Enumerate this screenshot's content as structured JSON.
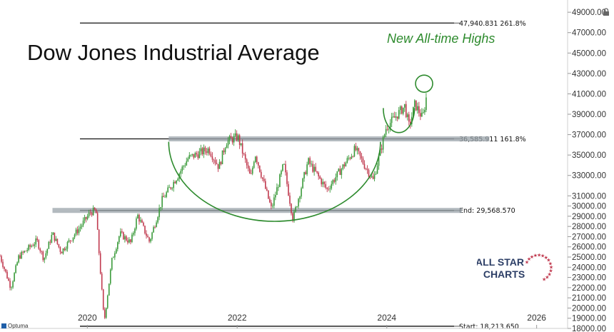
{
  "page": {
    "title": "Dow Jones Industrial Average",
    "annotation": "New All-time Highs",
    "logo": {
      "line1": "ALL STAR",
      "line2": "CHARTS"
    },
    "brand": "Optuma"
  },
  "chart_data": {
    "type": "candlestick",
    "title": "Dow Jones Industrial Average",
    "x_range": [
      "2018-11-01",
      "2026-06-01"
    ],
    "y_range": [
      18000,
      49500
    ],
    "x_ticks": [
      {
        "label": "2020",
        "date": "2020-01-01"
      },
      {
        "label": "2022",
        "date": "2022-01-01"
      },
      {
        "label": "2024",
        "date": "2024-01-01"
      },
      {
        "label": "2026",
        "date": "2026-01-01"
      }
    ],
    "y_ticks": [
      "18000.00",
      "19000.00",
      "20000.00",
      "21000.00",
      "22000.00",
      "23000.00",
      "24000.00",
      "25000.00",
      "26000.00",
      "27000.00",
      "28000.00",
      "29000.00",
      "30000.00",
      "31000.00",
      "33000.00",
      "35000.00",
      "37000.00",
      "39000.00",
      "41000.00",
      "43000.00",
      "45000.00",
      "47000.00",
      "49000.00"
    ],
    "y_tick_values": [
      18000,
      19000,
      20000,
      21000,
      22000,
      23000,
      24000,
      25000,
      26000,
      27000,
      28000,
      29000,
      30000,
      31000,
      33000,
      35000,
      37000,
      39000,
      41000,
      43000,
      45000,
      47000,
      49000
    ],
    "fib_levels": [
      {
        "value": 47940.831,
        "label": "47,940.831",
        "pct": "261.8%"
      },
      {
        "value": 36585.911,
        "label": "36,585.911",
        "pct": "161.8%"
      },
      {
        "value": 29568.57,
        "label": "29,568.570",
        "prefix": "End:"
      },
      {
        "value": 18213.65,
        "label": "18,213.650",
        "prefix": "Start:"
      }
    ],
    "price_path": [
      [
        "2018-11-01",
        25100
      ],
      [
        "2018-12-24",
        22000
      ],
      [
        "2019-01-31",
        25000
      ],
      [
        "2019-04-30",
        26600
      ],
      [
        "2019-06-03",
        24800
      ],
      [
        "2019-07-15",
        27300
      ],
      [
        "2019-08-26",
        25500
      ],
      [
        "2019-11-29",
        28000
      ],
      [
        "2020-01-17",
        29400
      ],
      [
        "2020-02-12",
        29550
      ],
      [
        "2020-03-23",
        18600
      ],
      [
        "2020-04-29",
        24600
      ],
      [
        "2020-06-08",
        27300
      ],
      [
        "2020-07-31",
        26400
      ],
      [
        "2020-09-02",
        29100
      ],
      [
        "2020-10-30",
        26500
      ],
      [
        "2020-12-31",
        30600
      ],
      [
        "2021-03-15",
        32900
      ],
      [
        "2021-05-07",
        34700
      ],
      [
        "2021-08-16",
        35600
      ],
      [
        "2021-10-04",
        33800
      ],
      [
        "2021-11-08",
        36300
      ],
      [
        "2022-01-04",
        36800
      ],
      [
        "2022-03-08",
        32700
      ],
      [
        "2022-03-29",
        35200
      ],
      [
        "2022-06-17",
        29700
      ],
      [
        "2022-08-16",
        34100
      ],
      [
        "2022-09-30",
        28700
      ],
      [
        "2022-12-13",
        34400
      ],
      [
        "2023-03-15",
        31600
      ],
      [
        "2023-07-31",
        35600
      ],
      [
        "2023-10-27",
        32500
      ],
      [
        "2023-12-29",
        37700
      ],
      [
        "2024-03-28",
        39800
      ],
      [
        "2024-04-19",
        37800
      ],
      [
        "2024-05-17",
        40000
      ],
      [
        "2024-06-24",
        38600
      ],
      [
        "2024-07-17",
        41300
      ]
    ],
    "zones": [
      {
        "value": 36585.911,
        "from": "2021-02-01",
        "to": "2025-05-15"
      },
      {
        "value": 29568.57,
        "from": "2019-07-15",
        "to": "2025-01-01"
      }
    ],
    "arcs": [
      {
        "from": "2021-02-01",
        "to": "2023-12-01",
        "top": 36300,
        "bottom": 28500
      },
      {
        "from": "2023-12-15",
        "to": "2024-05-15",
        "top": 39600,
        "bottom": 37200
      }
    ],
    "highlight_circle": {
      "date": "2024-07-01",
      "value": 42000
    },
    "colors": {
      "up": "#3a9a3a",
      "down": "#c0394e",
      "arc": "#2e8b2e",
      "fib": "#111111",
      "zone": "#9aa3aa"
    }
  }
}
